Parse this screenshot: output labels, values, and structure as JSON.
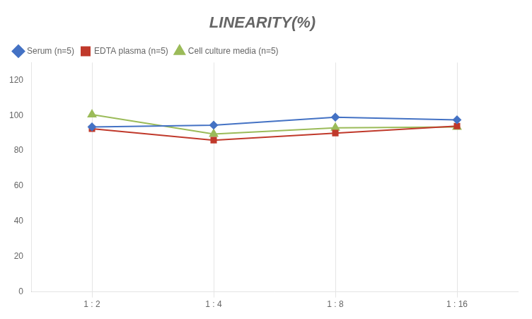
{
  "chart_data": {
    "type": "line",
    "title": "LINEARITY(%)",
    "categories": [
      "1 : 2",
      "1 : 4",
      "1 : 8",
      "1 : 16"
    ],
    "series": [
      {
        "name": "Serum (n=5)",
        "color": "#4472C4",
        "marker": "diamond",
        "values": [
          93.5,
          94.5,
          99.0,
          97.5
        ]
      },
      {
        "name": "EDTA plasma (n=5)",
        "color": "#C0392B",
        "marker": "square",
        "values": [
          92.5,
          86.0,
          90.0,
          94.0
        ]
      },
      {
        "name": "Cell culture media (n=5)",
        "color": "#9BBB59",
        "marker": "triangle",
        "values": [
          100.5,
          89.5,
          93.0,
          93.5
        ]
      }
    ],
    "ylim": [
      0,
      130
    ],
    "yticks": [
      0,
      20,
      40,
      60,
      80,
      100,
      120
    ],
    "grid": "x",
    "legend": "upper left"
  }
}
